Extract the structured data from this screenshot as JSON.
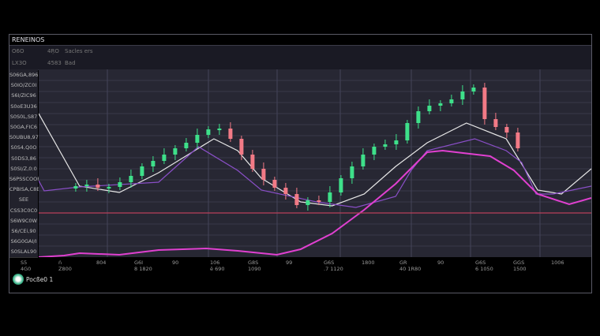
{
  "header": {
    "title": "RENEINOS"
  },
  "rows": [
    [
      "O6O",
      "4ŖO",
      "Sacles ers"
    ],
    [
      "LX3O",
      "4583",
      "Bad"
    ]
  ],
  "y_labels": [
    "S06GA,896",
    "S0IO/ZC0I",
    "S6I/ZIC96",
    "S0oE3U36",
    "S0S0L,S87",
    "S0GA,FIC6",
    "S0UBU8,97",
    "S0S4,Q0O",
    "S0DS3,86",
    "S0SI/Z,0:0",
    "S6PSSCOOP",
    "CPBISA,C8E",
    "SEE",
    "CSS3C0C0",
    "S6W9C0W",
    "S6/CEi,90",
    "S6G0GAI/I",
    "S0SLAL90"
  ],
  "x_labels": [
    [
      "S5",
      "4G0"
    ],
    [
      "ń",
      "Z800"
    ],
    [
      "",
      "804"
    ],
    [
      "G6I",
      "8 1820"
    ],
    [
      "",
      "90"
    ],
    [
      "106",
      "ë 690"
    ],
    [
      "G8S",
      "1090"
    ],
    [
      "",
      "99"
    ],
    [
      "G6S",
      ".7 1120"
    ],
    [
      "",
      "1800"
    ],
    [
      "GR",
      "40 1R80"
    ],
    [
      "",
      "90"
    ],
    [
      "G6S",
      "6 1050"
    ],
    [
      "GGS",
      "1500"
    ],
    [
      "",
      "1006"
    ]
  ],
  "footer": {
    "user": "Pocße0 1"
  },
  "colors": {
    "up": "#3ee08a",
    "down": "#f27a86",
    "white_line": "#e8e8e8",
    "purple_line": "#8a4fc8",
    "magenta_line": "#e040d0",
    "red_line": "#b8405a"
  },
  "chart_data": {
    "type": "line",
    "ylim": [
      0,
      238
    ],
    "xlim": [
      0,
      100
    ],
    "grid": true,
    "candles_x_start": 6.7,
    "candles_x_step": 2,
    "candles_close": [
      90,
      92,
      88,
      89,
      95,
      103,
      115,
      122,
      130,
      138,
      145,
      155,
      162,
      163,
      150,
      130,
      112,
      98,
      88,
      80,
      66,
      72,
      70,
      82,
      100,
      115,
      130,
      140,
      143,
      148,
      170,
      185,
      192,
      195,
      200,
      210,
      215,
      175,
      165,
      158,
      138
    ],
    "series": [
      {
        "color": "#e8e8e8",
        "x": [
          0,
          7.4,
          14.6,
          21.7,
          31.7,
          36,
          40.3,
          47.4,
          53.1,
          58.9,
          64.6,
          70.3,
          77.4,
          84.6,
          90.3,
          94.6,
          100
        ],
        "y": [
          182,
          90,
          82,
          107,
          150,
          135,
          100,
          70,
          65,
          80,
          115,
          145,
          170,
          150,
          85,
          80,
          112
        ]
      },
      {
        "color": "#8a4fc8",
        "x": [
          0,
          1,
          7.4,
          21.7,
          28.9,
          36,
          40.3,
          50.3,
          57.4,
          64.6,
          67.4,
          70.3,
          78.9,
          84.6,
          87.4,
          90,
          93.1,
          100
        ],
        "y": [
          97,
          84,
          89,
          95,
          140,
          110,
          85,
          70,
          63,
          77,
          110,
          135,
          150,
          135,
          120,
          80,
          80,
          90
        ]
      },
      {
        "color": "#e040d0",
        "x": [
          0,
          4.6,
          7.4,
          14.6,
          21.7,
          30.3,
          36,
          43.1,
          47.4,
          53.1,
          58.9,
          64.6,
          70.3,
          73.1,
          81.7,
          86,
          90.3,
          96,
          100
        ],
        "y": [
          0,
          2,
          5,
          3,
          9,
          11,
          8,
          3,
          10,
          30,
          60,
          93,
          133,
          135,
          128,
          110,
          80,
          67,
          75
        ]
      },
      {
        "color": "#b8405a",
        "x": [
          0,
          100
        ],
        "y": [
          56,
          56
        ]
      }
    ]
  }
}
